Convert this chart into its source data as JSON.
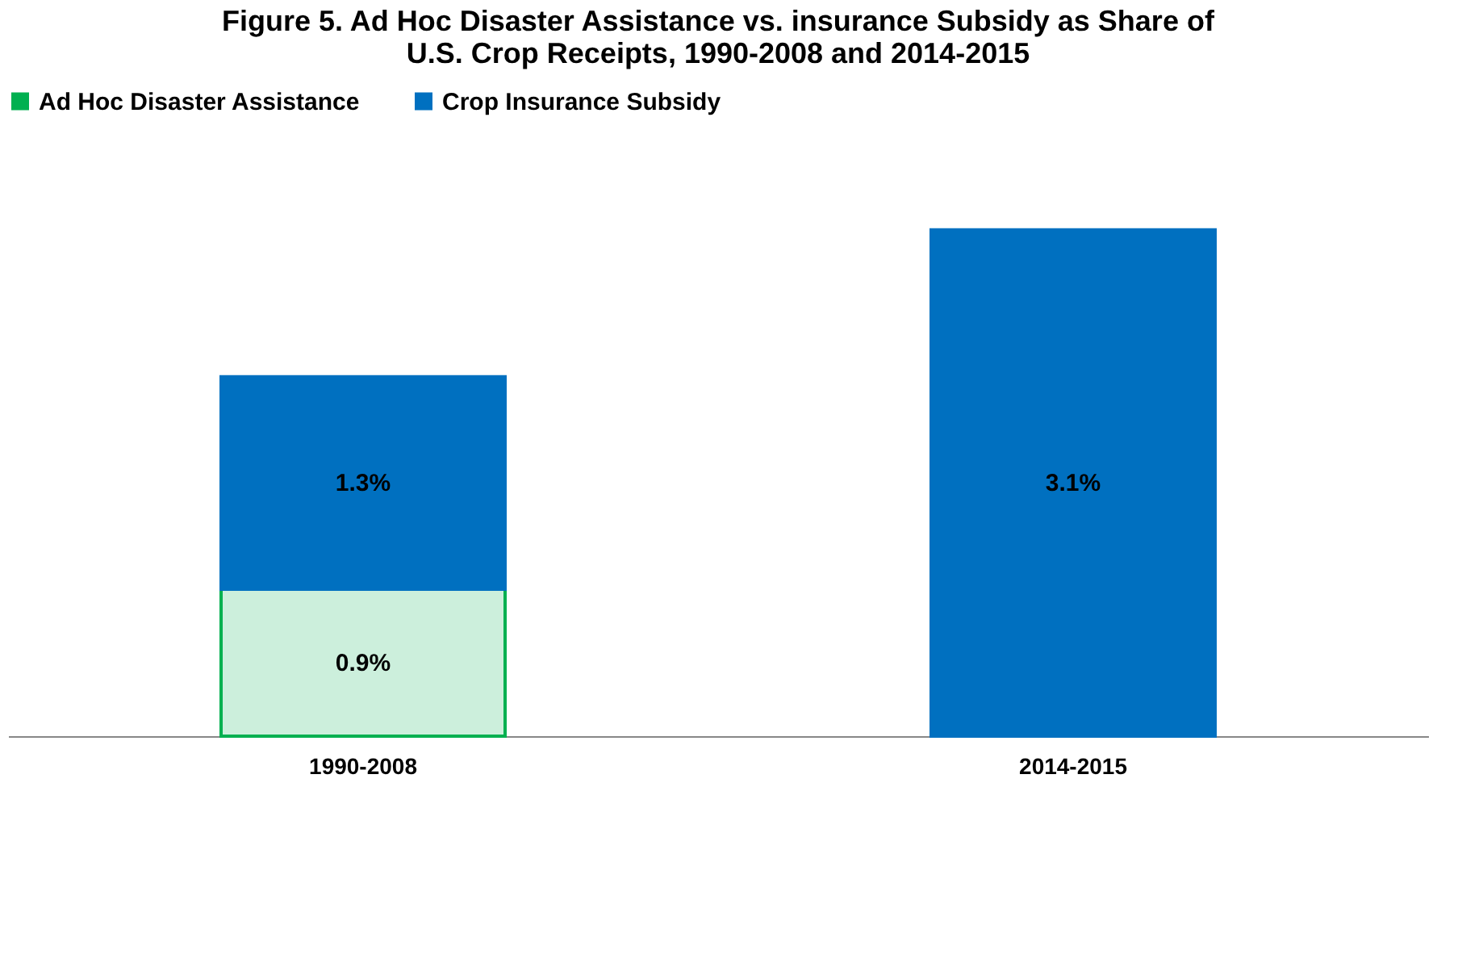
{
  "chart_data": {
    "type": "bar",
    "title": "Figure 5. Ad Hoc Disaster Assistance vs. insurance Subsidy as Share of U.S. Crop Receipts, 1990-2008 and 2014-2015",
    "categories": [
      "1990-2008",
      "2014-2015"
    ],
    "stacked": true,
    "legend": "top",
    "series": [
      {
        "name": "Ad Hoc Disaster Assistance",
        "color": "#00b050",
        "values": [
          0.9,
          null
        ],
        "value_labels": [
          "0.9%",
          null
        ]
      },
      {
        "name": "Crop Insurance Subsidy",
        "color": "#0070c0",
        "values": [
          1.3,
          3.1
        ],
        "value_labels": [
          "1.3%",
          "3.1%"
        ]
      }
    ]
  }
}
